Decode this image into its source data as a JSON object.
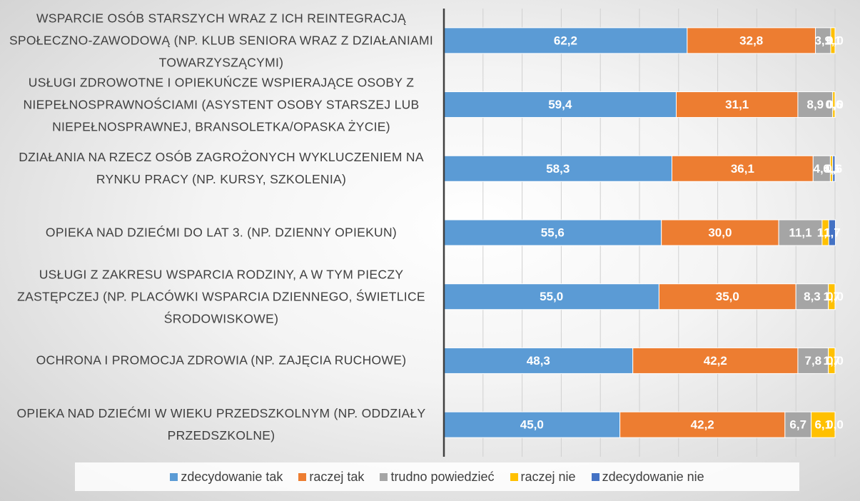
{
  "chart_data": {
    "type": "stacked-barh",
    "categories": [
      "WSPARCIE OSÓB STARSZYCH WRAZ Z ICH REINTEGRACJĄ SPOŁECZNO-ZAWODOWĄ (NP. KLUB SENIORA WRAZ Z DZIAŁANIAMI TOWARZYSZĄCYMI)",
      "USŁUGI ZDROWOTNE I OPIEKUŃCZE WSPIERAJĄCE OSOBY Z NIEPEŁNOSPRAWNOŚCIAMI (ASYSTENT OSOBY STARSZEJ LUB NIEPEŁNOSPRAWNEJ, BRANSOLETKA/OPASKA ŻYCIE)",
      "DZIAŁANIA NA RZECZ OSÓB ZAGROŻONYCH WYKLUCZENIEM NA RYNKU PRACY (NP. KURSY, SZKOLENIA)",
      "OPIEKA NAD DZIEĆMI DO LAT 3. (NP. DZIENNY OPIEKUN)",
      "USŁUGI Z ZAKRESU WSPARCIA RODZINY, A W TYM PIECZY ZASTĘPCZEJ (NP. PLACÓWKI WSPARCIA DZIENNEGO, ŚWIETLICE ŚRODOWISKOWE)",
      "OCHRONA I PROMOCJA ZDROWIA (NP. ZAJĘCIA RUCHOWE)",
      "OPIEKA NAD DZIEĆMI W WIEKU PRZEDSZKOLNYM  (NP. ODDZIAŁY PRZEDSZKOLNE)"
    ],
    "series": [
      {
        "name": "zdecydowanie tak",
        "color": "#5b9bd5",
        "values": [
          62.2,
          59.4,
          58.3,
          55.6,
          55.0,
          48.3,
          45.0
        ],
        "value_labels": [
          "62,2",
          "59,4",
          "58,3",
          "55,6",
          "55,0",
          "48,3",
          "45,0"
        ]
      },
      {
        "name": "raczej tak",
        "color": "#ed7d31",
        "values": [
          32.8,
          31.1,
          36.1,
          30.0,
          35.0,
          42.2,
          42.2
        ],
        "value_labels": [
          "32,8",
          "31,1",
          "36,1",
          "30,0",
          "35,0",
          "42,2",
          "42,2"
        ]
      },
      {
        "name": "trudno powiedzieć",
        "color": "#a5a5a5",
        "values": [
          3.9,
          8.9,
          4.4,
          11.1,
          8.3,
          7.8,
          6.7
        ],
        "value_labels": [
          "3,9",
          "8,9",
          "4,4",
          "11,1",
          "8,3",
          "7,8",
          "6,7"
        ]
      },
      {
        "name": "raczej nie",
        "color": "#ffc000",
        "values": [
          1.1,
          0.6,
          0.6,
          1.7,
          1.7,
          1.7,
          6.1
        ],
        "value_labels": [
          "1,1",
          "0,6",
          "0,6",
          "1,7",
          "1,7",
          "1,7",
          "6,1"
        ]
      },
      {
        "name": "zdecydowanie nie",
        "color": "#4472c4",
        "values": [
          0.0,
          0.0,
          0.6,
          1.7,
          0.0,
          0.0,
          0.0
        ],
        "value_labels": [
          "0,0",
          "0,0",
          "0,6",
          "1,7",
          "0,0",
          "0,0",
          "0,0"
        ]
      }
    ],
    "xlim": [
      0,
      100
    ],
    "xticks": [
      0,
      10,
      20,
      30,
      40,
      50,
      60,
      70,
      80,
      90,
      100
    ],
    "grid": true,
    "legend": "bottom"
  }
}
